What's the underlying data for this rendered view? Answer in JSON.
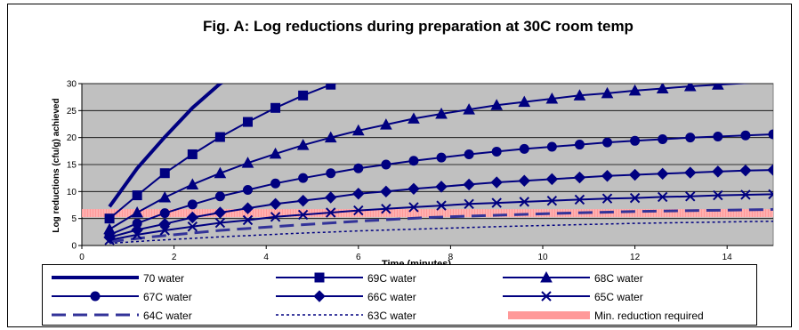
{
  "chart_data": {
    "type": "line",
    "title": "Fig. A: Log reductions during preparation at 30C room temp",
    "xlabel": "Time (minutes)",
    "ylabel": "Log reductions (cfu/g) achieved",
    "xlim": [
      0,
      15
    ],
    "ylim": [
      0,
      30
    ],
    "xticks": [
      "0",
      "2",
      "4",
      "6",
      "8",
      "10",
      "12",
      "14"
    ],
    "yticks": [
      "0",
      "5",
      "10",
      "15",
      "20",
      "25",
      "30"
    ],
    "grid": "horizontal",
    "plot_background": "#c0c0c0",
    "legend_position": "bottom",
    "series": [
      {
        "name": "70 water",
        "color": "#000080",
        "marker": "none",
        "dash": "solid",
        "width": 4,
        "x": [
          0.6,
          1.2,
          1.8,
          2.4,
          3.0,
          3.2
        ],
        "y": [
          7.2,
          14.3,
          20.1,
          25.5,
          30.0,
          31.0
        ]
      },
      {
        "name": "69C water",
        "color": "#000080",
        "marker": "square",
        "dash": "solid",
        "width": 2,
        "x": [
          0.6,
          1.2,
          1.8,
          2.4,
          3.0,
          3.6,
          4.2,
          4.8,
          5.4,
          6.0
        ],
        "y": [
          5.0,
          9.3,
          13.4,
          16.9,
          20.1,
          22.9,
          25.5,
          27.8,
          29.8,
          31.2
        ]
      },
      {
        "name": "68C water",
        "color": "#000080",
        "marker": "triangle",
        "dash": "solid",
        "width": 2,
        "x": [
          0.6,
          1.2,
          1.8,
          2.4,
          3.0,
          3.6,
          4.2,
          4.8,
          5.4,
          6.0,
          6.6,
          7.2,
          7.8,
          8.4,
          9.0,
          9.6,
          10.2,
          10.8,
          11.4,
          12.0,
          12.6,
          13.2,
          13.8,
          15.0
        ],
        "y": [
          3.0,
          6.1,
          8.9,
          11.3,
          13.4,
          15.3,
          17.0,
          18.6,
          20.0,
          21.3,
          22.4,
          23.5,
          24.4,
          25.2,
          26.0,
          26.6,
          27.2,
          27.8,
          28.2,
          28.7,
          29.1,
          29.5,
          29.8,
          30.4
        ]
      },
      {
        "name": "67C water",
        "color": "#000080",
        "marker": "circle",
        "dash": "solid",
        "width": 2,
        "x": [
          0.6,
          1.2,
          1.8,
          2.4,
          3.0,
          3.6,
          4.2,
          4.8,
          5.4,
          6.0,
          6.6,
          7.2,
          7.8,
          8.4,
          9.0,
          9.6,
          10.2,
          10.8,
          11.4,
          12.0,
          12.6,
          13.2,
          13.8,
          14.4,
          15.0
        ],
        "y": [
          2.0,
          4.1,
          6.0,
          7.6,
          9.1,
          10.3,
          11.5,
          12.5,
          13.4,
          14.3,
          15.0,
          15.7,
          16.3,
          16.9,
          17.4,
          17.9,
          18.3,
          18.7,
          19.1,
          19.4,
          19.7,
          20.0,
          20.2,
          20.4,
          20.6
        ]
      },
      {
        "name": "66C water",
        "color": "#000080",
        "marker": "diamond",
        "dash": "solid",
        "width": 2,
        "x": [
          0.6,
          1.2,
          1.8,
          2.4,
          3.0,
          3.6,
          4.2,
          4.8,
          5.4,
          6.0,
          6.6,
          7.2,
          7.8,
          8.4,
          9.0,
          9.6,
          10.2,
          10.8,
          11.4,
          12.0,
          12.6,
          13.2,
          13.8,
          14.4,
          15.0
        ],
        "y": [
          1.5,
          2.9,
          4.0,
          5.2,
          6.1,
          6.9,
          7.7,
          8.3,
          8.9,
          9.6,
          10.0,
          10.5,
          10.9,
          11.3,
          11.7,
          12.0,
          12.3,
          12.6,
          12.9,
          13.1,
          13.3,
          13.5,
          13.7,
          13.9,
          14.0
        ]
      },
      {
        "name": "65C water",
        "color": "#000080",
        "marker": "x",
        "dash": "solid",
        "width": 2,
        "x": [
          0.6,
          1.2,
          1.8,
          2.4,
          3.0,
          3.6,
          4.2,
          4.8,
          5.4,
          6.0,
          6.6,
          7.2,
          7.8,
          8.4,
          9.0,
          9.6,
          10.2,
          10.8,
          11.4,
          12.0,
          12.6,
          13.2,
          13.8,
          14.4,
          15.0
        ],
        "y": [
          1.0,
          2.0,
          2.8,
          3.5,
          4.2,
          4.7,
          5.3,
          5.7,
          6.1,
          6.5,
          6.8,
          7.1,
          7.4,
          7.7,
          7.9,
          8.1,
          8.3,
          8.5,
          8.7,
          8.8,
          9.0,
          9.1,
          9.3,
          9.4,
          9.5
        ]
      },
      {
        "name": "64C water",
        "color": "#333399",
        "marker": "none",
        "dash": "longdash",
        "width": 3,
        "x": [
          0.6,
          1.5,
          3.0,
          4.5,
          6.0,
          7.5,
          9.0,
          10.5,
          12.0,
          13.5,
          15.0
        ],
        "y": [
          0.7,
          1.6,
          2.8,
          3.7,
          4.5,
          5.2,
          5.6,
          6.0,
          6.3,
          6.5,
          6.7
        ]
      },
      {
        "name": "63C water",
        "color": "#000080",
        "marker": "none",
        "dash": "dotted",
        "width": 1.5,
        "x": [
          0.6,
          1.5,
          3.0,
          4.5,
          6.0,
          7.5,
          9.0,
          10.5,
          12.0,
          13.5,
          15.0
        ],
        "y": [
          0.4,
          0.9,
          1.6,
          2.2,
          2.7,
          3.1,
          3.5,
          3.8,
          4.1,
          4.3,
          4.5
        ]
      },
      {
        "name": "Min. reduction required",
        "color": "#ff9999",
        "marker": "none",
        "dash": "band",
        "width": 9,
        "x": [
          0,
          15
        ],
        "y": [
          6,
          6
        ]
      }
    ]
  }
}
